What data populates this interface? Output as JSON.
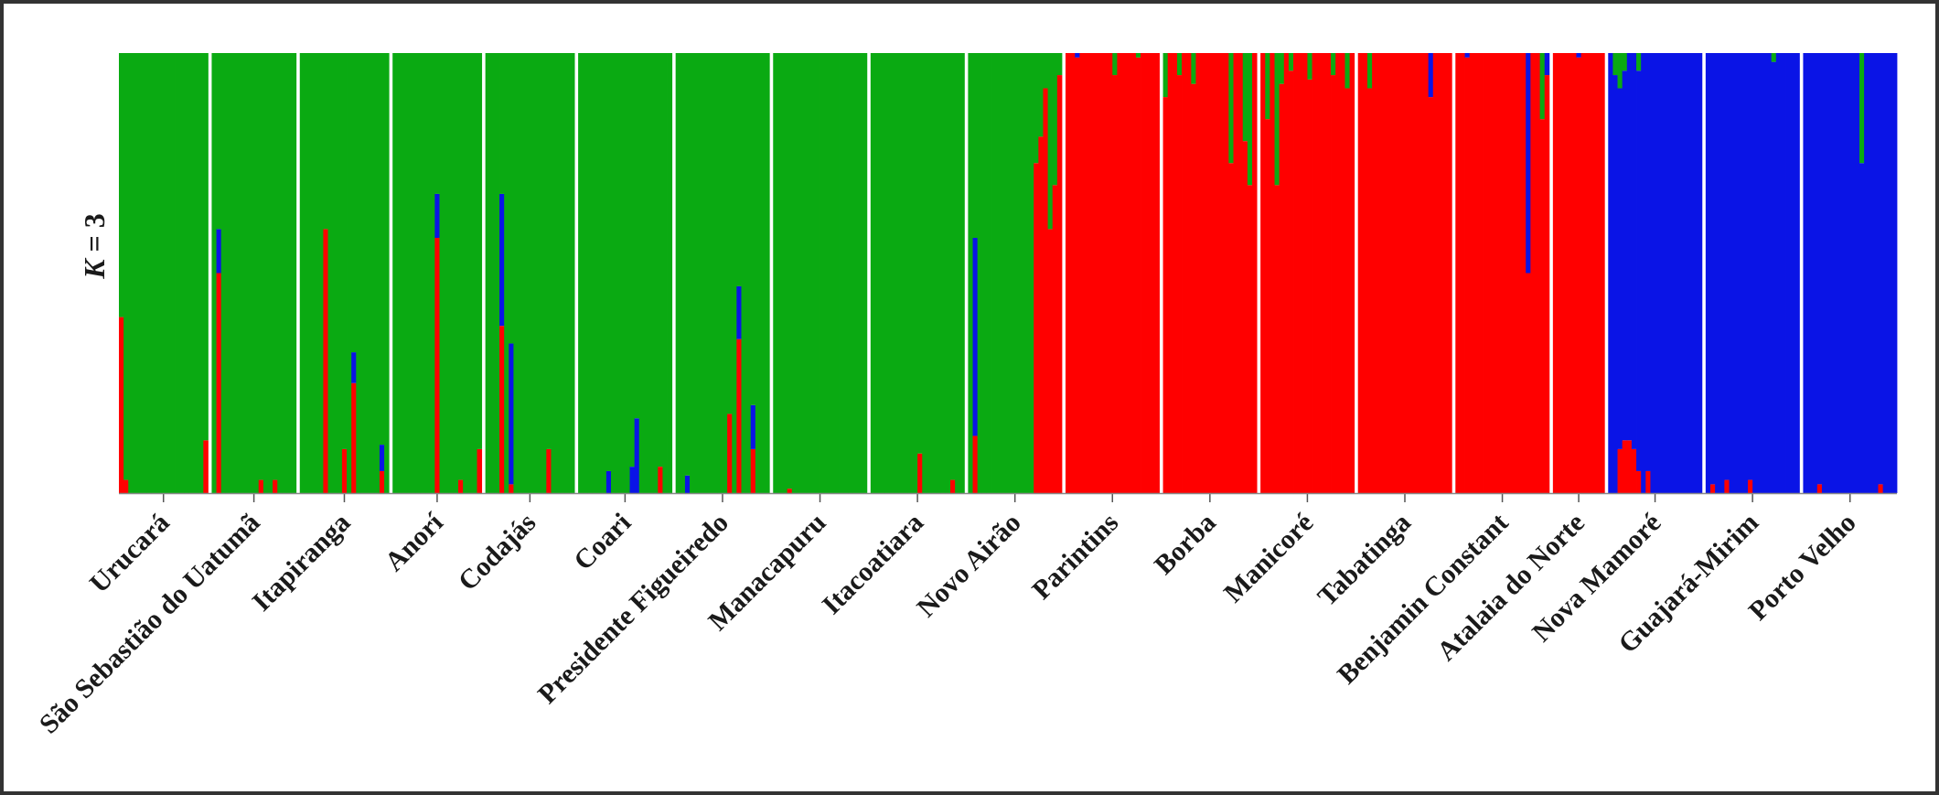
{
  "chart_data": {
    "type": "bar",
    "stacked": true,
    "ylabel": "K = 3",
    "ylabel_italic_part": "K",
    "ylabel_rest": " = 3",
    "ylim": [
      0,
      1
    ],
    "grid": false,
    "colors": {
      "cluster1": "#0aaa12",
      "cluster2": "#ff0000",
      "cluster3": "#0a14e6"
    },
    "base_order": [
      "cluster2",
      "cluster3",
      "cluster1"
    ],
    "populations": [
      {
        "name": "Urucará",
        "n": 19,
        "dominant": "cluster1",
        "spikes": [
          {
            "i": 0,
            "cluster2": 0.4
          },
          {
            "i": 1,
            "cluster2": 0.03
          },
          {
            "i": 18,
            "cluster2": 0.12
          }
        ]
      },
      {
        "name": "São Sebastião do Uatumã",
        "n": 18,
        "dominant": "cluster1",
        "spikes": [
          {
            "i": 1,
            "cluster2": 0.5,
            "cluster3": 0.1
          },
          {
            "i": 10,
            "cluster2": 0.03
          },
          {
            "i": 13,
            "cluster2": 0.03
          }
        ]
      },
      {
        "name": "Itapiranga",
        "n": 19,
        "dominant": "cluster1",
        "spikes": [
          {
            "i": 5,
            "cluster2": 0.6
          },
          {
            "i": 9,
            "cluster2": 0.1
          },
          {
            "i": 11,
            "cluster2": 0.25,
            "cluster3": 0.07
          },
          {
            "i": 17,
            "cluster2": 0.05,
            "cluster3": 0.06
          }
        ]
      },
      {
        "name": "Anorí",
        "n": 19,
        "dominant": "cluster1",
        "spikes": [
          {
            "i": 9,
            "cluster2": 0.58,
            "cluster3": 0.1
          },
          {
            "i": 14,
            "cluster2": 0.03
          },
          {
            "i": 18,
            "cluster2": 0.1
          }
        ]
      },
      {
        "name": "Codajás",
        "n": 19,
        "dominant": "cluster1",
        "spikes": [
          {
            "i": 3,
            "cluster2": 0.38,
            "cluster3": 0.3
          },
          {
            "i": 5,
            "cluster2": 0.02,
            "cluster3": 0.32
          },
          {
            "i": 13,
            "cluster2": 0.1
          }
        ]
      },
      {
        "name": "Coari",
        "n": 20,
        "dominant": "cluster1",
        "spikes": [
          {
            "i": 6,
            "cluster3": 0.05
          },
          {
            "i": 11,
            "cluster3": 0.06
          },
          {
            "i": 12,
            "cluster3": 0.17
          },
          {
            "i": 17,
            "cluster2": 0.06
          }
        ]
      },
      {
        "name": "Presidente Figueiredo",
        "n": 20,
        "dominant": "cluster1",
        "spikes": [
          {
            "i": 2,
            "cluster3": 0.04
          },
          {
            "i": 11,
            "cluster2": 0.18
          },
          {
            "i": 13,
            "cluster2": 0.35,
            "cluster3": 0.12
          },
          {
            "i": 16,
            "cluster2": 0.1,
            "cluster3": 0.1
          }
        ]
      },
      {
        "name": "Manacapuru",
        "n": 20,
        "dominant": "cluster1",
        "spikes": [
          {
            "i": 3,
            "cluster2": 0.01
          }
        ]
      },
      {
        "name": "Itacoatiara",
        "n": 20,
        "dominant": "cluster1",
        "spikes": [
          {
            "i": 10,
            "cluster2": 0.09
          },
          {
            "i": 17,
            "cluster2": 0.03
          }
        ]
      },
      {
        "name": "Novo Airão",
        "n": 20,
        "dominant": "cluster1",
        "spikes": [
          {
            "i": 1,
            "cluster2": 0.13,
            "cluster3": 0.45
          },
          {
            "i": 14,
            "cluster2": 0.75
          },
          {
            "i": 15,
            "cluster2": 0.81
          },
          {
            "i": 16,
            "cluster2": 0.92
          },
          {
            "i": 17,
            "cluster2": 0.6
          },
          {
            "i": 18,
            "cluster2": 0.7
          },
          {
            "i": 19,
            "cluster2": 0.95
          }
        ]
      },
      {
        "name": "Parintins",
        "n": 20,
        "dominant": "cluster2",
        "spikes": [
          {
            "i": 2,
            "cluster3": 0.01
          },
          {
            "i": 10,
            "cluster1": 0.05
          },
          {
            "i": 15,
            "cluster1": 0.01
          }
        ]
      },
      {
        "name": "Borba",
        "n": 20,
        "dominant": "cluster2",
        "spikes": [
          {
            "i": 0,
            "cluster1": 0.1
          },
          {
            "i": 3,
            "cluster1": 0.05
          },
          {
            "i": 6,
            "cluster1": 0.07
          },
          {
            "i": 14,
            "cluster1": 0.25
          },
          {
            "i": 17,
            "cluster1": 0.2
          },
          {
            "i": 18,
            "cluster1": 0.3
          }
        ]
      },
      {
        "name": "Manicoré",
        "n": 20,
        "dominant": "cluster2",
        "spikes": [
          {
            "i": 1,
            "cluster1": 0.15
          },
          {
            "i": 3,
            "cluster1": 0.3
          },
          {
            "i": 4,
            "cluster1": 0.07
          },
          {
            "i": 6,
            "cluster1": 0.04
          },
          {
            "i": 10,
            "cluster1": 0.06
          },
          {
            "i": 15,
            "cluster1": 0.05
          },
          {
            "i": 18,
            "cluster1": 0.08
          }
        ]
      },
      {
        "name": "Tabatinga",
        "n": 20,
        "dominant": "cluster2",
        "spikes": [
          {
            "i": 2,
            "cluster1": 0.08
          },
          {
            "i": 15,
            "cluster3": 0.1
          }
        ]
      },
      {
        "name": "Benjamin Constant",
        "n": 20,
        "dominant": "cluster2",
        "spikes": [
          {
            "i": 2,
            "cluster3": 0.01
          },
          {
            "i": 15,
            "cluster3": 0.5
          },
          {
            "i": 18,
            "cluster1": 0.15
          },
          {
            "i": 19,
            "cluster3": 0.05
          }
        ]
      },
      {
        "name": "Atalaia do Norte",
        "n": 11,
        "dominant": "cluster2",
        "spikes": [
          {
            "i": 5,
            "cluster3": 0.01
          }
        ]
      },
      {
        "name": "Nova Mamoré",
        "n": 20,
        "dominant": "cluster3",
        "spikes": [
          {
            "i": 1,
            "cluster1": 0.05
          },
          {
            "i": 2,
            "cluster1": 0.08,
            "cluster2": 0.1
          },
          {
            "i": 3,
            "cluster1": 0.04,
            "cluster2": 0.12
          },
          {
            "i": 4,
            "cluster2": 0.12
          },
          {
            "i": 5,
            "cluster2": 0.1
          },
          {
            "i": 6,
            "cluster1": 0.04,
            "cluster2": 0.05
          },
          {
            "i": 8,
            "cluster2": 0.05
          }
        ]
      },
      {
        "name": "Guajará-Mirim",
        "n": 20,
        "dominant": "cluster3",
        "spikes": [
          {
            "i": 1,
            "cluster2": 0.02
          },
          {
            "i": 4,
            "cluster2": 0.03
          },
          {
            "i": 9,
            "cluster2": 0.03
          },
          {
            "i": 14,
            "cluster1": 0.02
          }
        ]
      },
      {
        "name": "Porto Velho",
        "n": 20,
        "dominant": "cluster3",
        "spikes": [
          {
            "i": 3,
            "cluster2": 0.02
          },
          {
            "i": 12,
            "cluster1": 0.25
          },
          {
            "i": 16,
            "cluster2": 0.02
          }
        ]
      }
    ]
  }
}
